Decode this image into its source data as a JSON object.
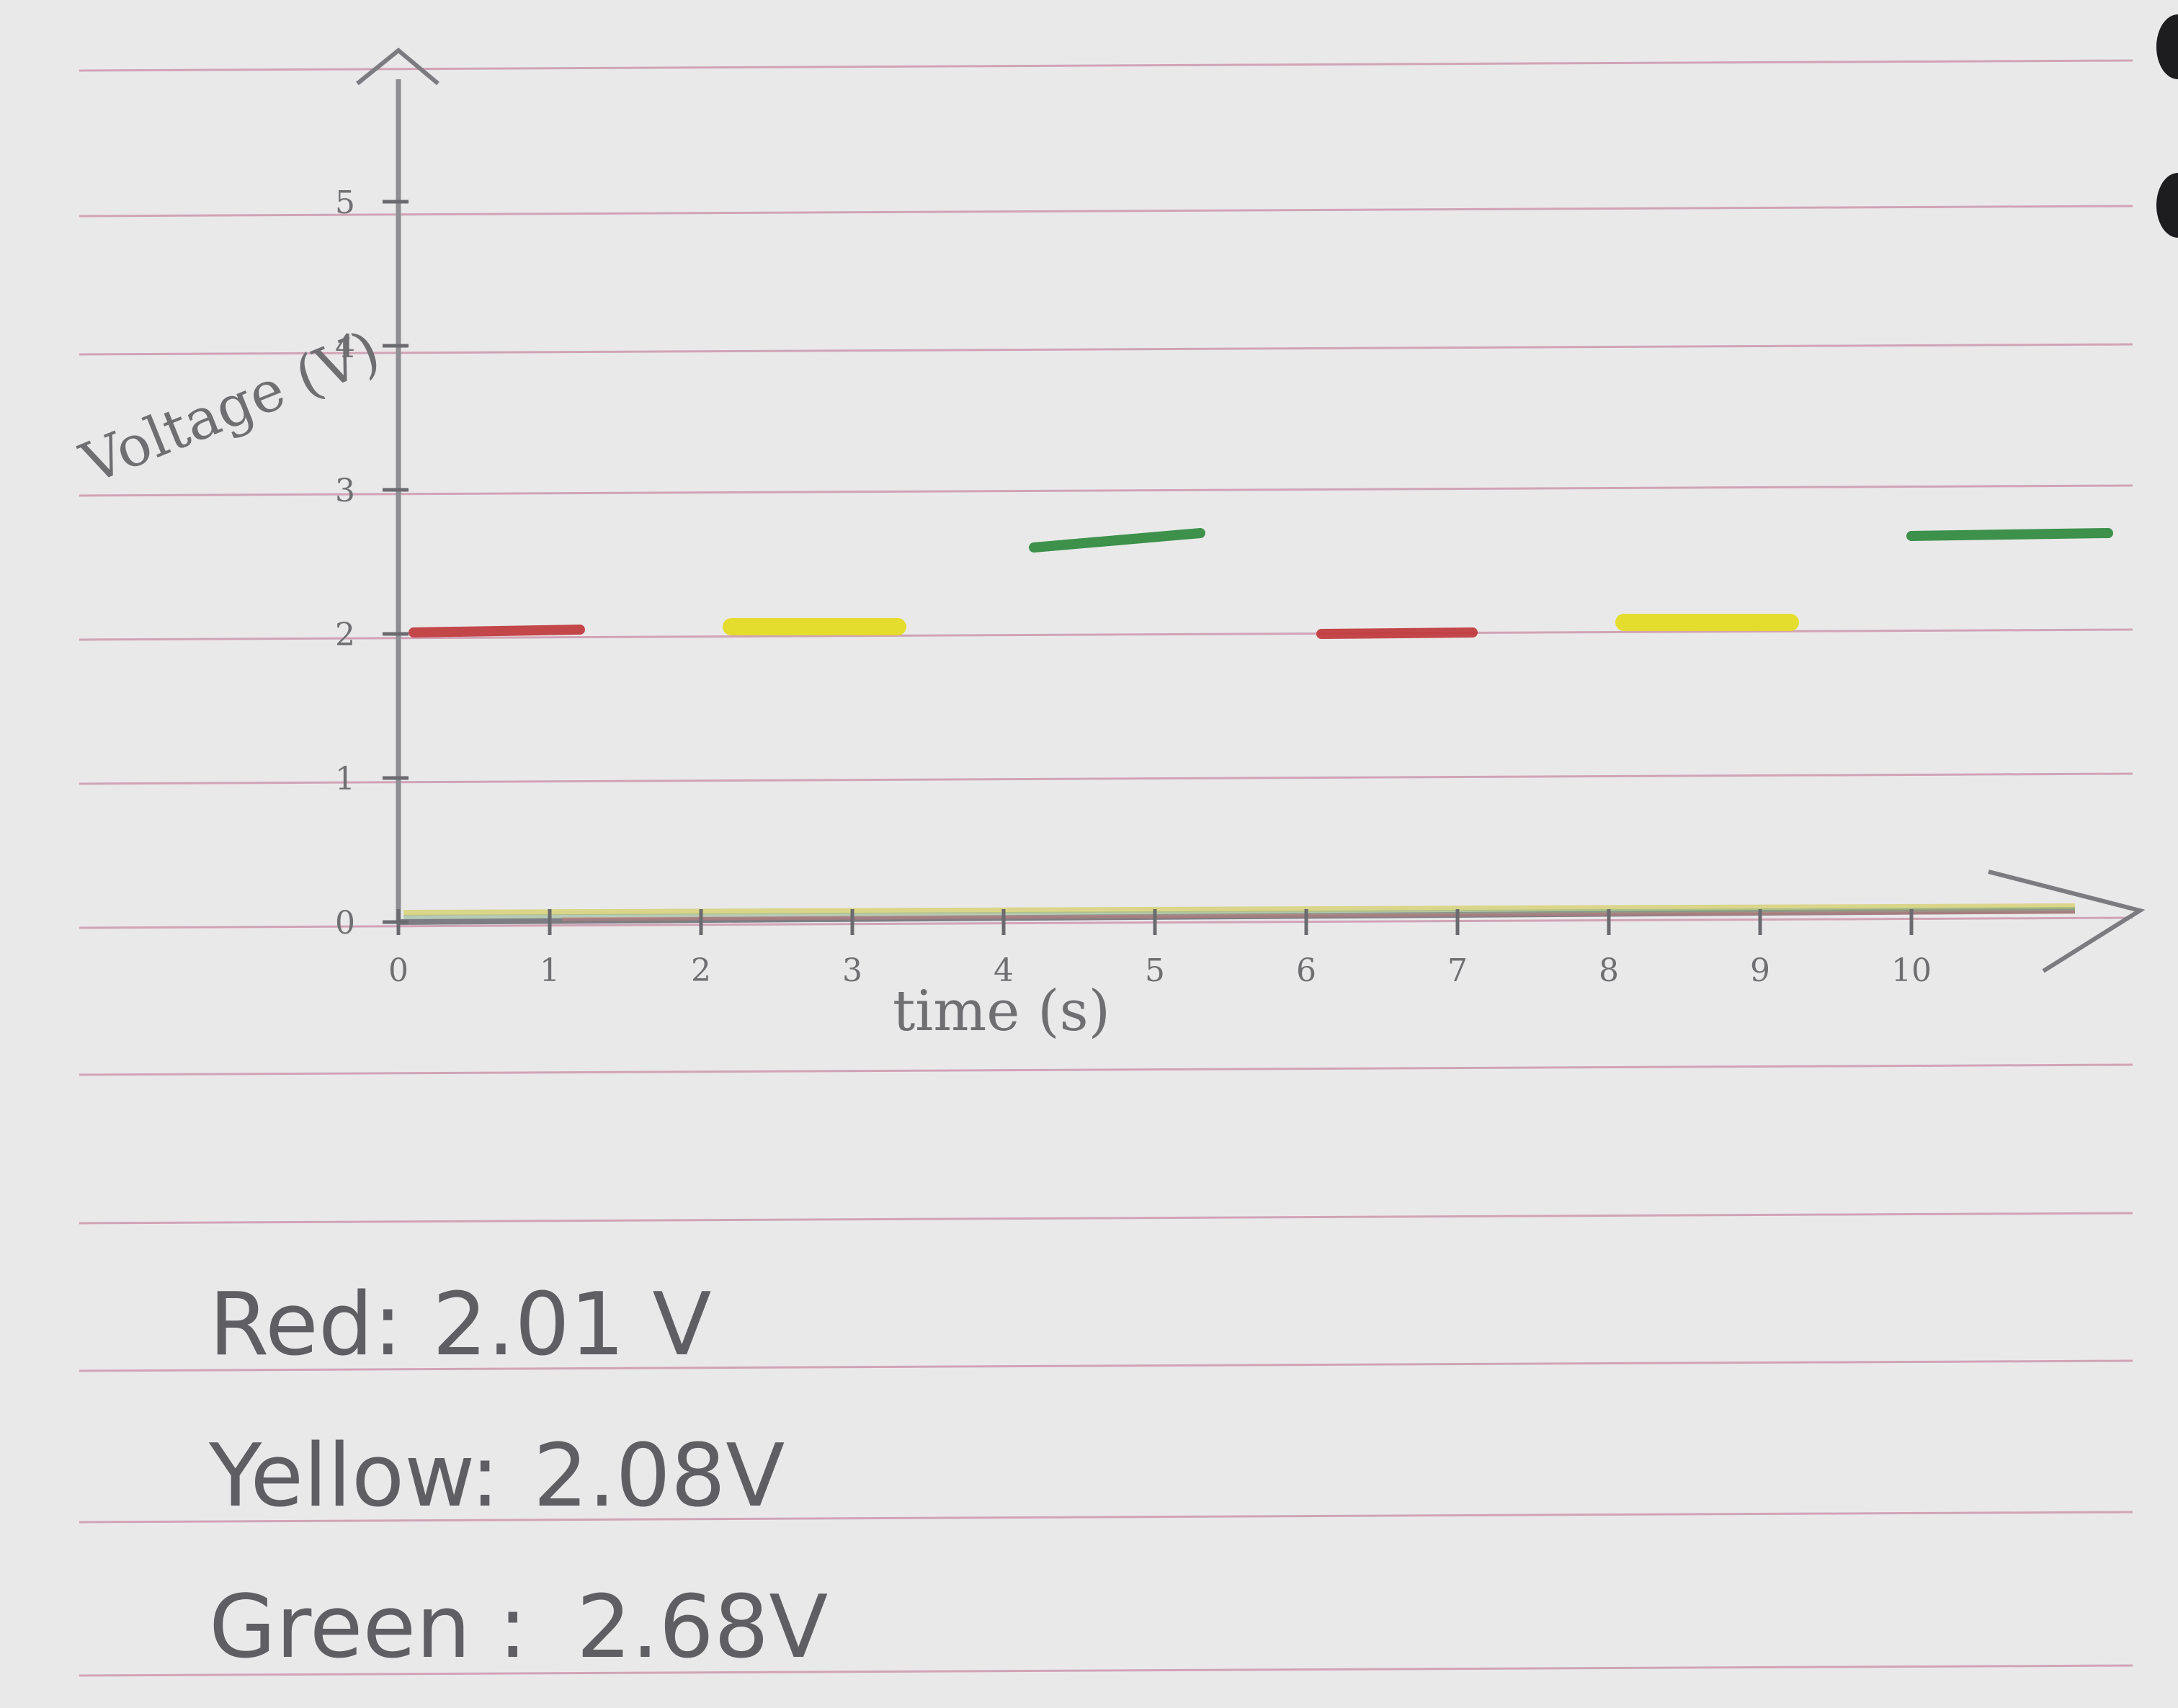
{
  "chart_data": {
    "type": "line",
    "title": "",
    "xlabel": "time (s)",
    "ylabel": "Voltage (V)",
    "xlim": [
      0,
      11
    ],
    "ylim": [
      0,
      6
    ],
    "x_ticks": [
      "0",
      "1",
      "2",
      "3",
      "4",
      "5",
      "6",
      "7",
      "8",
      "9",
      "10"
    ],
    "y_ticks": [
      "0",
      "1",
      "2",
      "3",
      "4",
      "5"
    ],
    "grid": false,
    "legend": "none",
    "series": [
      {
        "name": "Red",
        "color": "#c0393c",
        "segments": [
          {
            "x": [
              0.1,
              1.2
            ],
            "y": [
              2.01,
              2.03
            ]
          },
          {
            "x": [
              6.1,
              7.1
            ],
            "y": [
              2.0,
              2.01
            ]
          }
        ]
      },
      {
        "name": "Yellow",
        "color": "#e5dc1f",
        "segments": [
          {
            "x": [
              2.2,
              3.3
            ],
            "y": [
              2.05,
              2.05
            ]
          },
          {
            "x": [
              8.1,
              9.2
            ],
            "y": [
              2.08,
              2.08
            ]
          }
        ]
      },
      {
        "name": "Green",
        "color": "#2f8a3e",
        "segments": [
          {
            "x": [
              4.2,
              5.3
            ],
            "y": [
              2.6,
              2.7
            ]
          },
          {
            "x": [
              10.0,
              11.3
            ],
            "y": [
              2.68,
              2.7
            ]
          }
        ]
      }
    ]
  },
  "notes": [
    {
      "label": "Red:",
      "value": "2.01 V"
    },
    {
      "label": "Yellow:",
      "value": "2.08V"
    },
    {
      "label": "Green :",
      "value": "2.68V"
    }
  ]
}
